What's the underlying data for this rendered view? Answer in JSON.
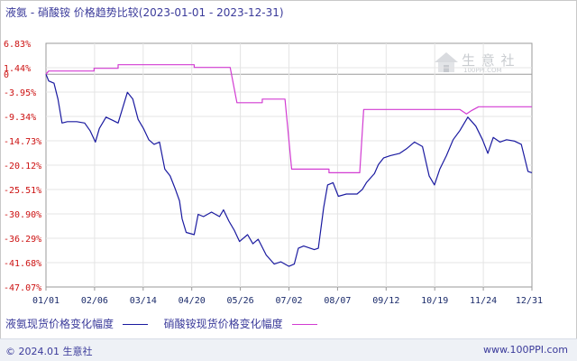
{
  "title": "液氨 - 硝酸铵 价格趋势比较(2023-01-01 - 2023-12-31)",
  "legend": {
    "s1": "液氨现货价格变化幅度",
    "s2": "硝酸铵现货价格变化幅度"
  },
  "footer": {
    "copyright": "© 2024.01 生意社",
    "site": "www.100PPI.com"
  },
  "watermark": {
    "text": "生 意 社",
    "sub": "100PPI.COM"
  },
  "chart_data": {
    "type": "line",
    "title": "液氨 - 硝酸铵 价格趋势比较(2023-01-01 - 2023-12-31)",
    "x_range": [
      "2023-01-01",
      "2023-12-31"
    ],
    "x_ticks": [
      "01/01",
      "02/06",
      "03/14",
      "04/20",
      "05/26",
      "07/02",
      "08/07",
      "09/12",
      "10/19",
      "11/24",
      "12/31"
    ],
    "y_ticks": [
      "6.83%",
      "1.44%",
      "-3.95%",
      "-9.34%",
      "-14.73%",
      "-20.12%",
      "-25.51%",
      "-30.90%",
      "-36.29%",
      "-41.68%",
      "-47.07%"
    ],
    "ylim": [
      -47.07,
      6.83
    ],
    "zero_line": true,
    "legend_position": "bottom",
    "series": [
      {
        "name": "液氨现货价格变化幅度",
        "color": "#1a1aa0",
        "points": [
          [
            "2023-01-01",
            0
          ],
          [
            "2023-01-03",
            -1.5
          ],
          [
            "2023-01-07",
            -2.0
          ],
          [
            "2023-01-10",
            -5.5
          ],
          [
            "2023-01-13",
            -10.8
          ],
          [
            "2023-01-17",
            -10.5
          ],
          [
            "2023-01-24",
            -10.5
          ],
          [
            "2023-01-30",
            -10.8
          ],
          [
            "2023-02-03",
            -12.5
          ],
          [
            "2023-02-07",
            -15.0
          ],
          [
            "2023-02-10",
            -12.0
          ],
          [
            "2023-02-15",
            -9.5
          ],
          [
            "2023-02-20",
            -10.2
          ],
          [
            "2023-02-24",
            -10.8
          ],
          [
            "2023-03-03",
            -4.0
          ],
          [
            "2023-03-07",
            -5.5
          ],
          [
            "2023-03-11",
            -10.0
          ],
          [
            "2023-03-15",
            -12.0
          ],
          [
            "2023-03-19",
            -14.5
          ],
          [
            "2023-03-23",
            -15.5
          ],
          [
            "2023-03-27",
            -15.0
          ],
          [
            "2023-03-31",
            -21.0
          ],
          [
            "2023-04-04",
            -22.5
          ],
          [
            "2023-04-08",
            -25.5
          ],
          [
            "2023-04-11",
            -28.0
          ],
          [
            "2023-04-13",
            -32.0
          ],
          [
            "2023-04-16",
            -35.0
          ],
          [
            "2023-04-22",
            -35.5
          ],
          [
            "2023-04-25",
            -31.0
          ],
          [
            "2023-04-29",
            -31.5
          ],
          [
            "2023-05-05",
            -30.5
          ],
          [
            "2023-05-11",
            -31.5
          ],
          [
            "2023-05-14",
            -30.0
          ],
          [
            "2023-05-18",
            -32.5
          ],
          [
            "2023-05-22",
            -34.5
          ],
          [
            "2023-05-26",
            -37.0
          ],
          [
            "2023-06-01",
            -35.5
          ],
          [
            "2023-06-05",
            -37.5
          ],
          [
            "2023-06-09",
            -36.5
          ],
          [
            "2023-06-15",
            -40.0
          ],
          [
            "2023-06-21",
            -42.0
          ],
          [
            "2023-06-26",
            -41.5
          ],
          [
            "2023-07-02",
            -42.5
          ],
          [
            "2023-07-06",
            -42.0
          ],
          [
            "2023-07-09",
            -38.5
          ],
          [
            "2023-07-13",
            -38.0
          ],
          [
            "2023-07-21",
            -38.8
          ],
          [
            "2023-07-24",
            -38.5
          ],
          [
            "2023-07-28",
            -29.5
          ],
          [
            "2023-07-31",
            -24.5
          ],
          [
            "2023-08-04",
            -24.0
          ],
          [
            "2023-08-08",
            -27.0
          ],
          [
            "2023-08-14",
            -26.5
          ],
          [
            "2023-08-22",
            -26.5
          ],
          [
            "2023-08-26",
            -25.5
          ],
          [
            "2023-08-29",
            -24.0
          ],
          [
            "2023-09-01",
            -23.0
          ],
          [
            "2023-09-04",
            -22.0
          ],
          [
            "2023-09-07",
            -20.0
          ],
          [
            "2023-09-11",
            -18.5
          ],
          [
            "2023-09-16",
            -18.0
          ],
          [
            "2023-09-23",
            -17.5
          ],
          [
            "2023-09-28",
            -16.5
          ],
          [
            "2023-10-04",
            -15.0
          ],
          [
            "2023-10-10",
            -16.0
          ],
          [
            "2023-10-15",
            -22.5
          ],
          [
            "2023-10-19",
            -24.5
          ],
          [
            "2023-10-23",
            -21.0
          ],
          [
            "2023-10-28",
            -18.0
          ],
          [
            "2023-11-02",
            -14.5
          ],
          [
            "2023-11-07",
            -12.5
          ],
          [
            "2023-11-13",
            -9.5
          ],
          [
            "2023-11-16",
            -10.5
          ],
          [
            "2023-11-19",
            -11.5
          ],
          [
            "2023-11-24",
            -14.5
          ],
          [
            "2023-11-28",
            -17.5
          ],
          [
            "2023-12-02",
            -14.0
          ],
          [
            "2023-12-07",
            -15.0
          ],
          [
            "2023-12-12",
            -14.5
          ],
          [
            "2023-12-18",
            -14.8
          ],
          [
            "2023-12-23",
            -15.5
          ],
          [
            "2023-12-28",
            -21.5
          ],
          [
            "2023-12-31",
            -21.8
          ]
        ]
      },
      {
        "name": "硝酸铵现货价格变化幅度",
        "color": "#d23cd2",
        "points": [
          [
            "2023-01-01",
            0
          ],
          [
            "2023-01-03",
            0.7
          ],
          [
            "2023-02-06",
            0.7
          ],
          [
            "2023-02-06",
            1.3
          ],
          [
            "2023-02-24",
            1.3
          ],
          [
            "2023-02-24",
            2.1
          ],
          [
            "2023-04-22",
            2.1
          ],
          [
            "2023-04-22",
            1.5
          ],
          [
            "2023-05-19",
            1.5
          ],
          [
            "2023-05-24",
            -6.3
          ],
          [
            "2023-06-12",
            -6.3
          ],
          [
            "2023-06-12",
            -5.5
          ],
          [
            "2023-06-29",
            -5.5
          ],
          [
            "2023-07-04",
            -21.0
          ],
          [
            "2023-08-01",
            -21.0
          ],
          [
            "2023-08-01",
            -21.8
          ],
          [
            "2023-08-24",
            -21.8
          ],
          [
            "2023-08-27",
            -7.8
          ],
          [
            "2023-11-07",
            -7.8
          ],
          [
            "2023-11-12",
            -8.8
          ],
          [
            "2023-11-16",
            -8.0
          ],
          [
            "2023-11-21",
            -7.2
          ],
          [
            "2023-12-31",
            -7.2
          ]
        ]
      }
    ]
  }
}
